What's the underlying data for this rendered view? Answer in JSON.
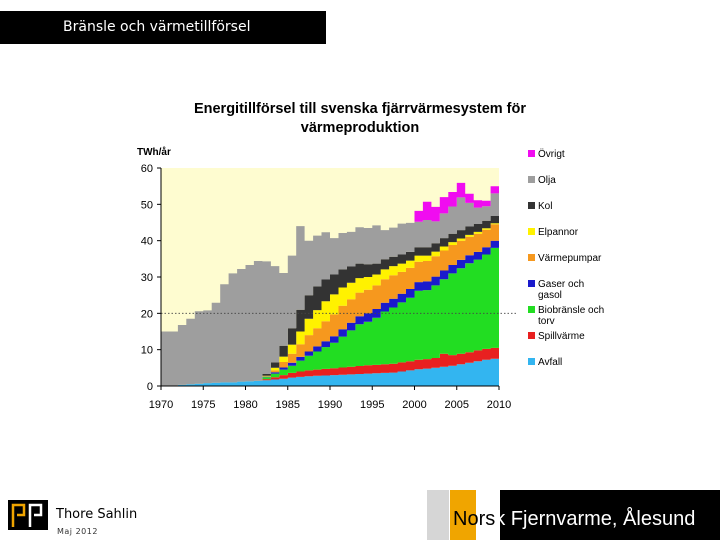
{
  "slide": {
    "title": "Bränsle och värmetillförsel",
    "author": "Thore Sahlin",
    "date": "Maj 2012",
    "footer_prefix": "Nors",
    "footer_suffix": "k Fjernvarme, Ålesund"
  },
  "chart_data": {
    "type": "area",
    "stacked": true,
    "title": "Energitillförsel till svenska fjärrvärmesystem för värmeproduktion",
    "ylabel": "TWh/år",
    "xlabel": "",
    "ylim": [
      0,
      60
    ],
    "yticks": [
      0,
      10,
      20,
      30,
      40,
      50,
      60
    ],
    "xticks": [
      1970,
      1975,
      1980,
      1985,
      1990,
      1995,
      2000,
      2005,
      2010
    ],
    "reference_line": 20,
    "legend_position": "right",
    "background_color": "#fefcd0",
    "x": [
      1970,
      1971,
      1972,
      1973,
      1974,
      1975,
      1976,
      1977,
      1978,
      1979,
      1980,
      1981,
      1982,
      1983,
      1984,
      1985,
      1986,
      1987,
      1988,
      1989,
      1990,
      1991,
      1992,
      1993,
      1994,
      1995,
      1996,
      1997,
      1998,
      1999,
      2000,
      2001,
      2002,
      2003,
      2004,
      2005,
      2006,
      2007,
      2008,
      2009
    ],
    "series": [
      {
        "name": "Avfall",
        "color": "#33b5f0",
        "values": [
          0,
          0,
          0.3,
          0.5,
          0.6,
          0.8,
          0.9,
          1,
          1,
          1.2,
          1.3,
          1.4,
          1.6,
          1.8,
          2,
          2.3,
          2.5,
          2.7,
          2.8,
          2.9,
          3,
          3.1,
          3.2,
          3.3,
          3.4,
          3.5,
          3.6,
          3.7,
          4,
          4.3,
          4.6,
          4.8,
          5,
          5.3,
          5.6,
          6,
          6.4,
          6.8,
          7.2,
          7.5
        ]
      },
      {
        "name": "Spillvärme",
        "color": "#e82020",
        "values": [
          0,
          0,
          0,
          0,
          0,
          0,
          0,
          0,
          0,
          0,
          0,
          0,
          0.3,
          0.6,
          1,
          1.3,
          1.5,
          1.6,
          1.7,
          1.8,
          1.9,
          2,
          2.1,
          2.2,
          2.3,
          2.3,
          2.4,
          2.4,
          2.5,
          2.5,
          2.6,
          2.6,
          2.7,
          3.6,
          2.9,
          2.9,
          2.9,
          3,
          3,
          3
        ]
      },
      {
        "name": "Biobränsle och torv",
        "color": "#22dd22",
        "values": [
          0,
          0,
          0,
          0,
          0,
          0,
          0,
          0,
          0,
          0,
          0,
          0,
          0.5,
          1,
          1.5,
          2,
          3,
          4,
          5,
          6,
          7,
          8.5,
          10,
          11.5,
          12,
          13,
          14.5,
          15.5,
          16.5,
          17.5,
          19,
          19,
          20,
          20.5,
          22.5,
          23.5,
          24.5,
          25,
          26,
          27.5
        ]
      },
      {
        "name": "Gaser och gasol",
        "color": "#1a1acc",
        "values": [
          0,
          0,
          0,
          0,
          0,
          0,
          0,
          0,
          0,
          0,
          0,
          0,
          0.2,
          0.4,
          0.6,
          0.8,
          1,
          1.2,
          1.4,
          1.6,
          1.8,
          2,
          2.1,
          2.2,
          2.3,
          2.4,
          2.4,
          2.4,
          2.4,
          2.4,
          2.4,
          2.4,
          2.4,
          2.4,
          2.3,
          2.3,
          2.2,
          2.1,
          2,
          2
        ]
      },
      {
        "name": "Värmepumpar",
        "color": "#f6981e",
        "values": [
          0,
          0,
          0,
          0,
          0,
          0,
          0,
          0,
          0,
          0,
          0,
          0,
          0,
          0.5,
          1.5,
          2.5,
          3.5,
          4.5,
          5,
          5.5,
          6,
          6.5,
          6.5,
          6.5,
          6.5,
          6.5,
          6.5,
          6.5,
          6,
          5.8,
          5.6,
          5.6,
          5.6,
          5.5,
          5.5,
          5.3,
          5.1,
          5,
          4.8,
          4.5
        ]
      },
      {
        "name": "Elpannor",
        "color": "#fff200",
        "values": [
          0,
          0,
          0,
          0,
          0,
          0,
          0,
          0,
          0,
          0,
          0,
          0,
          0.2,
          0.7,
          1.5,
          2.5,
          3.5,
          4.5,
          5,
          5.5,
          5.5,
          5,
          4.5,
          4,
          3.5,
          3,
          2.7,
          2.5,
          2.3,
          2,
          1.7,
          1.5,
          1.3,
          1.1,
          0.8,
          0.6,
          0.5,
          0.5,
          0.4,
          0.3
        ]
      },
      {
        "name": "Kol",
        "color": "#333333",
        "values": [
          0,
          0,
          0,
          0,
          0,
          0,
          0,
          0,
          0,
          0,
          0,
          0,
          0.5,
          1.5,
          3,
          4.5,
          6,
          6.5,
          6.5,
          6,
          5.5,
          5,
          4.5,
          4,
          3.5,
          3,
          2.8,
          2.6,
          2.5,
          2.4,
          2.3,
          2.3,
          2.3,
          2.3,
          2.3,
          2.3,
          2.3,
          2.2,
          2.1,
          2
        ]
      },
      {
        "name": "Olja",
        "color": "#9e9e9e",
        "values": [
          15,
          15,
          16.5,
          18,
          20,
          20,
          22,
          27,
          30,
          31,
          32,
          33,
          31,
          26.5,
          20,
          20,
          23,
          15,
          14,
          13,
          10,
          10,
          9.5,
          10,
          10,
          10.5,
          8,
          8,
          8.5,
          8,
          7,
          7.5,
          6,
          6.8,
          7.5,
          9,
          6.5,
          4.5,
          4,
          6.2
        ]
      },
      {
        "name": "Övrigt",
        "color": "#f00cf0",
        "values": [
          0,
          0,
          0,
          0,
          0,
          0,
          0,
          0,
          0,
          0,
          0,
          0,
          0,
          0,
          0,
          0,
          0,
          0,
          0,
          0,
          0,
          0,
          0,
          0,
          0,
          0,
          0,
          0,
          0,
          0,
          3,
          5,
          4,
          4.5,
          4,
          4,
          2.5,
          2,
          1.5,
          2
        ]
      }
    ]
  }
}
